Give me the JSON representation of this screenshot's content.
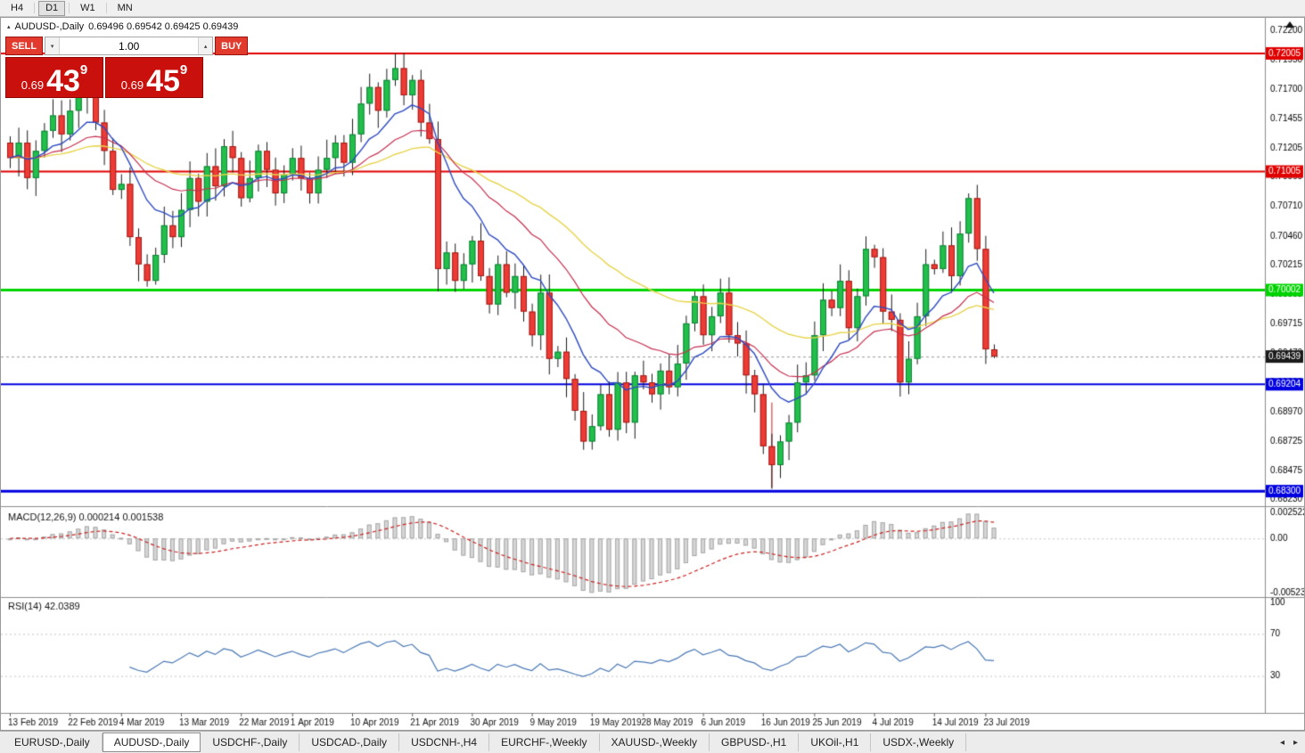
{
  "toolbar": {
    "timeframes": [
      "H4",
      "D1",
      "W1",
      "MN"
    ],
    "active": "D1"
  },
  "icons": {
    "volume_down": "▾",
    "volume_up": "▴",
    "tabs_left": "◂",
    "tabs_right": "▸",
    "symbol_marker": "▴"
  },
  "chart": {
    "info": {
      "symbol": "AUDUSD-,Daily",
      "values": "0.69496 0.69542 0.69425 0.69439"
    },
    "trade_panel": {
      "sell_label": "SELL",
      "buy_label": "BUY",
      "volume": "1.00",
      "sell_price": {
        "small": "0.69",
        "big": "43",
        "sup": "9"
      },
      "buy_price": {
        "small": "0.69",
        "big": "45",
        "sup": "9"
      }
    }
  },
  "chart_data": {
    "type": "candlestick",
    "symbol": "AUDUSD",
    "timeframe": "Daily",
    "ohlc_readout": {
      "open": 0.69496,
      "high": 0.69542,
      "low": 0.69425,
      "close": 0.69439
    },
    "ylim": [
      0.68188,
      0.72276
    ],
    "bar_start_x": 10,
    "bar_spacing": 9.6,
    "first_open": 0.7125,
    "closes": [
      0.7112,
      0.7125,
      0.7095,
      0.7118,
      0.7135,
      0.7148,
      0.7132,
      0.7152,
      0.7165,
      0.7172,
      0.7142,
      0.7118,
      0.7085,
      0.709,
      0.7045,
      0.7022,
      0.7008,
      0.703,
      0.7055,
      0.7045,
      0.7068,
      0.7095,
      0.7075,
      0.7105,
      0.7088,
      0.7122,
      0.7112,
      0.7078,
      0.7095,
      0.7118,
      0.7102,
      0.7082,
      0.7098,
      0.7112,
      0.7095,
      0.7082,
      0.7102,
      0.7112,
      0.7125,
      0.7108,
      0.7132,
      0.7158,
      0.7172,
      0.7152,
      0.7178,
      0.7188,
      0.7165,
      0.7178,
      0.7142,
      0.7128,
      0.7018,
      0.7032,
      0.7008,
      0.7022,
      0.7042,
      0.7012,
      0.6988,
      0.7022,
      0.6998,
      0.7012,
      0.6982,
      0.6962,
      0.6998,
      0.6942,
      0.6948,
      0.6925,
      0.6898,
      0.6872,
      0.6885,
      0.6912,
      0.6882,
      0.6922,
      0.6888,
      0.6928,
      0.6922,
      0.6912,
      0.6932,
      0.6918,
      0.6938,
      0.6972,
      0.6995,
      0.6962,
      0.6978,
      0.6998,
      0.6962,
      0.6955,
      0.6928,
      0.6912,
      0.6868,
      0.6852,
      0.6872,
      0.6888,
      0.6922,
      0.6928,
      0.6962,
      0.6992,
      0.6985,
      0.7008,
      0.6968,
      0.6995,
      0.7035,
      0.7028,
      0.6982,
      0.6975,
      0.6922,
      0.6942,
      0.6978,
      0.7022,
      0.7018,
      0.7038,
      0.7012,
      0.7048,
      0.7078,
      0.7035,
      0.695,
      0.6944
    ],
    "wick_overrides": {
      "9": {
        "high": 0.7188
      },
      "16": {
        "low": 0.7003
      },
      "45": {
        "high": 0.72005
      },
      "50": {
        "low": 0.6999
      },
      "67": {
        "low": 0.6865
      },
      "89": {
        "low": 0.6832
      },
      "104": {
        "low": 0.691
      },
      "112": {
        "high": 0.7082
      },
      "115": {
        "high": 0.69542,
        "low": 0.69425
      }
    },
    "levels": [
      {
        "price": 0.72005,
        "label": "0.72005",
        "color": "#e00000",
        "width": 2
      },
      {
        "price": 0.71005,
        "label": "0.71005",
        "color": "#e00000",
        "width": 2
      },
      {
        "price": 0.70002,
        "label": "0.70002",
        "color": "#00d400",
        "width": 3
      },
      {
        "price": 0.69204,
        "label": "0.69204",
        "color": "#0000e0",
        "width": 2
      },
      {
        "price": 0.683,
        "label": "0.68300",
        "color": "#0000e0",
        "width": 3
      }
    ],
    "current_price": {
      "value": 0.69439,
      "label": "0.69439",
      "badge_color": "#1a1a1a"
    },
    "price_axis_labels": [
      "0.72200",
      "0.71950",
      "0.71700",
      "0.71455",
      "0.71205",
      "0.70960",
      "0.70710",
      "0.70460",
      "0.70215",
      "0.69965",
      "0.69715",
      "0.69470",
      "0.69220",
      "0.68970",
      "0.68725",
      "0.68475",
      "0.68230"
    ],
    "date_labels": [
      {
        "label": "13 Feb 2019",
        "bar": 0
      },
      {
        "label": "22 Feb 2019",
        "bar": 7
      },
      {
        "label": "4 Mar 2019",
        "bar": 13
      },
      {
        "label": "13 Mar 2019",
        "bar": 20
      },
      {
        "label": "22 Mar 2019",
        "bar": 27
      },
      {
        "label": "1 Apr 2019",
        "bar": 33
      },
      {
        "label": "10 Apr 2019",
        "bar": 40
      },
      {
        "label": "21 Apr 2019",
        "bar": 47
      },
      {
        "label": "30 Apr 2019",
        "bar": 54
      },
      {
        "label": "9 May 2019",
        "bar": 61
      },
      {
        "label": "19 May 2019",
        "bar": 68
      },
      {
        "label": "28 May 2019",
        "bar": 74
      },
      {
        "label": "6 Jun 2019",
        "bar": 81
      },
      {
        "label": "16 Jun 2019",
        "bar": 88
      },
      {
        "label": "25 Jun 2019",
        "bar": 94
      },
      {
        "label": "4 Jul 2019",
        "bar": 101
      },
      {
        "label": "14 Jul 2019",
        "bar": 108
      },
      {
        "label": "23 Jul 2019",
        "bar": 114
      }
    ],
    "moving_averages": [
      {
        "period": 10,
        "method": "ema",
        "color": "#2f4bc0",
        "width": 1.4
      },
      {
        "period": 22,
        "method": "ema",
        "color": "#c53050",
        "width": 1.2
      },
      {
        "period": 45,
        "method": "ema",
        "color": "#e7d44d",
        "width": 1.4
      }
    ],
    "macd": {
      "label": "MACD(12,26,9)",
      "values_text": [
        "0.000214",
        "0.001538"
      ],
      "fast": 12,
      "slow": 26,
      "signal_period": 9,
      "axis_labels": [
        "0.002522",
        "0.00",
        "-0.0052340"
      ],
      "range": [
        -0.005234,
        0.002522
      ]
    },
    "rsi": {
      "label": "RSI(14)",
      "value_text": "42.0389",
      "period": 14,
      "axis_labels": [
        "100",
        "70",
        "30"
      ],
      "levels": [
        70,
        30
      ],
      "range": [
        0,
        100
      ]
    },
    "vertical_line": {
      "bar": 89,
      "from": 0.6905,
      "to": 0.6833,
      "color": "#cc2222"
    },
    "colors": {
      "bull": "#22bf4b",
      "bull_border": "#12813a",
      "bear": "#ef3b35",
      "bear_border": "#a01d18",
      "wick": "#1a1a1a",
      "macd_hist_fill": "#d6d6d6",
      "macd_hist_border": "#a8a8a8",
      "macd_signal": "#cc2222",
      "rsi_line": "#4b79b5",
      "level_dotted": "#c4c4c4",
      "axis_text": "#000000"
    }
  },
  "tabbar": {
    "tabs": [
      {
        "label": "EURUSD-,Daily",
        "active": false
      },
      {
        "label": "AUDUSD-,Daily",
        "active": true
      },
      {
        "label": "USDCHF-,Daily",
        "active": false
      },
      {
        "label": "USDCAD-,Daily",
        "active": false
      },
      {
        "label": "USDCNH-,H4",
        "active": false
      },
      {
        "label": "EURCHF-,Weekly",
        "active": false
      },
      {
        "label": "XAUUSD-,Weekly",
        "active": false
      },
      {
        "label": "GBPUSD-,H1",
        "active": false
      },
      {
        "label": "UKOil-,H1",
        "active": false
      },
      {
        "label": "USDX-,Weekly",
        "active": false
      }
    ]
  }
}
